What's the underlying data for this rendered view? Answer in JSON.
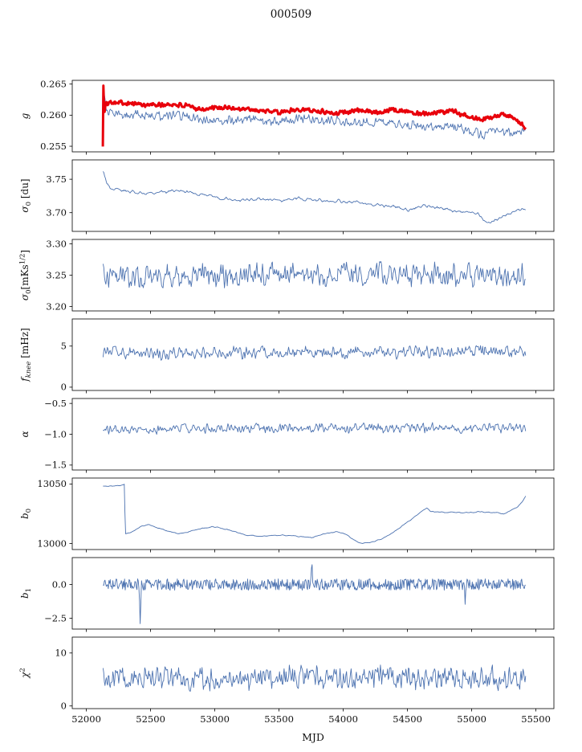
{
  "title": "000509",
  "chart_data": {
    "type": "line",
    "title": "000509",
    "xlabel": "MJD",
    "xlim": [
      51890,
      55640
    ],
    "xticks": [
      {
        "v": 52000,
        "label": "52000"
      },
      {
        "v": 52500,
        "label": "52500"
      },
      {
        "v": 53000,
        "label": "53000"
      },
      {
        "v": 53500,
        "label": "53500"
      },
      {
        "v": 54000,
        "label": "54000"
      },
      {
        "v": 54500,
        "label": "54500"
      },
      {
        "v": 55000,
        "label": "55000"
      },
      {
        "v": 55500,
        "label": "55500"
      }
    ],
    "colors": {
      "blue": "#4c72b0",
      "red": "#e8000b",
      "axis": "#000000"
    },
    "panels": [
      {
        "ylabel": [
          {
            "t": "g",
            "i": true
          }
        ],
        "ylim": [
          0.2541,
          0.2656
        ],
        "yticks": [
          {
            "v": 0.255,
            "label": "0.255"
          },
          {
            "v": 0.26,
            "label": "0.260"
          },
          {
            "v": 0.265,
            "label": "0.265"
          }
        ],
        "series": [
          {
            "name": "gain-blue",
            "color": "#4c72b0",
            "width": 0.9,
            "n": 650,
            "seed": 102,
            "noise": 0.0009,
            "smooth": 2,
            "points": [
              [
                52130,
                0.2612
              ],
              [
                52140,
                0.2626
              ],
              [
                52155,
                0.2604
              ],
              [
                52250,
                0.2601
              ],
              [
                52450,
                0.2599
              ],
              [
                52650,
                0.26
              ],
              [
                52850,
                0.2596
              ],
              [
                53050,
                0.259
              ],
              [
                53250,
                0.2596
              ],
              [
                53450,
                0.2589
              ],
              [
                53650,
                0.2594
              ],
              [
                53850,
                0.2591
              ],
              [
                54050,
                0.2589
              ],
              [
                54250,
                0.259
              ],
              [
                54450,
                0.2586
              ],
              [
                54650,
                0.2581
              ],
              [
                54850,
                0.2583
              ],
              [
                55000,
                0.2574
              ],
              [
                55080,
                0.2568
              ],
              [
                55180,
                0.2578
              ],
              [
                55280,
                0.2574
              ],
              [
                55350,
                0.257
              ],
              [
                55420,
                0.2581
              ]
            ]
          },
          {
            "name": "gain-red",
            "color": "#e8000b",
            "width": 3,
            "n": 700,
            "seed": 101,
            "noise": 0.00045,
            "smooth": 2,
            "points": [
              [
                52128,
                0.255
              ],
              [
                52133,
                0.2652
              ],
              [
                52139,
                0.26
              ],
              [
                52150,
                0.2618
              ],
              [
                52200,
                0.2622
              ],
              [
                52350,
                0.2619
              ],
              [
                52500,
                0.2616
              ],
              [
                52700,
                0.2617
              ],
              [
                52900,
                0.261
              ],
              [
                53100,
                0.2612
              ],
              [
                53300,
                0.2609
              ],
              [
                53500,
                0.2604
              ],
              [
                53650,
                0.261
              ],
              [
                53800,
                0.2607
              ],
              [
                53950,
                0.2603
              ],
              [
                54100,
                0.2608
              ],
              [
                54250,
                0.2605
              ],
              [
                54400,
                0.2609
              ],
              [
                54550,
                0.2604
              ],
              [
                54700,
                0.2603
              ],
              [
                54850,
                0.2607
              ],
              [
                55000,
                0.2596
              ],
              [
                55080,
                0.2591
              ],
              [
                55150,
                0.2597
              ],
              [
                55250,
                0.2601
              ],
              [
                55320,
                0.2597
              ],
              [
                55380,
                0.2586
              ],
              [
                55420,
                0.258
              ]
            ]
          }
        ]
      },
      {
        "ylabel": [
          {
            "t": "σ",
            "i": true
          },
          {
            "t": "0",
            "s": "sub"
          },
          {
            "t": " [du]"
          }
        ],
        "ylim": [
          3.672,
          3.779
        ],
        "yticks": [
          {
            "v": 3.7,
            "label": "3.70"
          },
          {
            "v": 3.75,
            "label": "3.75"
          }
        ],
        "series": [
          {
            "name": "sigma0-du",
            "color": "#4c72b0",
            "width": 0.9,
            "n": 550,
            "seed": 103,
            "noise": 0.0035,
            "smooth": 3,
            "points": [
              [
                52130,
                3.762
              ],
              [
                52160,
                3.745
              ],
              [
                52200,
                3.736
              ],
              [
                52300,
                3.733
              ],
              [
                52450,
                3.729
              ],
              [
                52600,
                3.731
              ],
              [
                52750,
                3.732
              ],
              [
                52900,
                3.727
              ],
              [
                53050,
                3.722
              ],
              [
                53200,
                3.718
              ],
              [
                53350,
                3.721
              ],
              [
                53500,
                3.718
              ],
              [
                53650,
                3.721
              ],
              [
                53800,
                3.719
              ],
              [
                53950,
                3.717
              ],
              [
                54100,
                3.716
              ],
              [
                54250,
                3.712
              ],
              [
                54400,
                3.709
              ],
              [
                54500,
                3.704
              ],
              [
                54650,
                3.71
              ],
              [
                54800,
                3.706
              ],
              [
                54950,
                3.7
              ],
              [
                55050,
                3.7
              ],
              [
                55120,
                3.683
              ],
              [
                55200,
                3.69
              ],
              [
                55300,
                3.7
              ],
              [
                55420,
                3.706
              ]
            ]
          }
        ]
      },
      {
        "ylabel": [
          {
            "t": "σ",
            "i": true
          },
          {
            "t": "0",
            "s": "sub"
          },
          {
            "t": "[mKs"
          },
          {
            "t": "1/2",
            "s": "sup"
          },
          {
            "t": "]"
          }
        ],
        "ylim": [
          3.193,
          3.307
        ],
        "yticks": [
          {
            "v": 3.2,
            "label": "3.20"
          },
          {
            "v": 3.25,
            "label": "3.25"
          },
          {
            "v": 3.3,
            "label": "3.30"
          }
        ],
        "series": [
          {
            "name": "sigma0-mks",
            "color": "#4c72b0",
            "width": 0.9,
            "n": 600,
            "seed": 104,
            "noise": 0.022,
            "smooth": 2,
            "points": [
              [
                52130,
                3.247
              ],
              [
                53000,
                3.25
              ],
              [
                54000,
                3.252
              ],
              [
                55420,
                3.251
              ]
            ]
          }
        ]
      },
      {
        "ylabel": [
          {
            "t": "f",
            "i": true
          },
          {
            "t": "knee",
            "s": "sub",
            "i": true
          },
          {
            "t": " [mHz]"
          }
        ],
        "ylim": [
          -0.4,
          8.3
        ],
        "yticks": [
          {
            "v": 0,
            "label": "0"
          },
          {
            "v": 5,
            "label": "5"
          }
        ],
        "series": [
          {
            "name": "fknee",
            "color": "#4c72b0",
            "width": 0.9,
            "n": 600,
            "seed": 105,
            "noise": 0.9,
            "smooth": 2,
            "points": [
              [
                52130,
                4.15
              ],
              [
                53500,
                4.2
              ],
              [
                54500,
                4.25
              ],
              [
                55420,
                4.3
              ]
            ]
          }
        ]
      },
      {
        "ylabel": [
          {
            "t": "α",
            "i": true
          }
        ],
        "ylim": [
          -1.58,
          -0.42
        ],
        "yticks": [
          {
            "v": -0.5,
            "label": "−0.5"
          },
          {
            "v": -1.0,
            "label": "−1.0"
          },
          {
            "v": -1.5,
            "label": "−1.5"
          }
        ],
        "series": [
          {
            "name": "alpha",
            "color": "#4c72b0",
            "width": 0.9,
            "n": 600,
            "seed": 106,
            "noise": 0.09,
            "smooth": 2,
            "points": [
              [
                52130,
                -0.92
              ],
              [
                53500,
                -0.9
              ],
              [
                55420,
                -0.9
              ]
            ]
          }
        ]
      },
      {
        "ylabel": [
          {
            "t": "b",
            "i": true
          },
          {
            "t": "0",
            "s": "sub"
          }
        ],
        "ylim": [
          12995,
          13055
        ],
        "yticks": [
          {
            "v": 13000,
            "label": "13000"
          },
          {
            "v": 13050,
            "label": "13050"
          }
        ],
        "series": [
          {
            "name": "b0",
            "color": "#4c72b0",
            "width": 0.9,
            "n": 600,
            "seed": 107,
            "noise": 0.7,
            "smooth": 4,
            "points": [
              [
                52130,
                13048
              ],
              [
                52200,
                13048.5
              ],
              [
                52290,
                13049
              ],
              [
                52298,
                13050
              ],
              [
                52302,
                13008
              ],
              [
                52360,
                13010
              ],
              [
                52420,
                13014
              ],
              [
                52480,
                13016
              ],
              [
                52560,
                13013
              ],
              [
                52650,
                13010
              ],
              [
                52720,
                13008
              ],
              [
                52800,
                13010
              ],
              [
                52900,
                13013
              ],
              [
                53000,
                13014
              ],
              [
                53080,
                13012
              ],
              [
                53160,
                13010
              ],
              [
                53250,
                13007
              ],
              [
                53350,
                13006
              ],
              [
                53450,
                13007
              ],
              [
                53550,
                13007
              ],
              [
                53650,
                13006
              ],
              [
                53750,
                13005
              ],
              [
                53850,
                13008
              ],
              [
                53950,
                13010
              ],
              [
                54020,
                13008
              ],
              [
                54080,
                13003
              ],
              [
                54150,
                13000
              ],
              [
                54220,
                13001
              ],
              [
                54300,
                13004
              ],
              [
                54400,
                13010
              ],
              [
                54500,
                13018
              ],
              [
                54600,
                13026
              ],
              [
                54650,
                13030
              ],
              [
                54680,
                13027
              ],
              [
                54800,
                13026
              ],
              [
                54900,
                13026
              ],
              [
                55000,
                13026
              ],
              [
                55050,
                13027
              ],
              [
                55120,
                13026
              ],
              [
                55200,
                13026
              ],
              [
                55250,
                13025
              ],
              [
                55300,
                13028
              ],
              [
                55350,
                13030
              ],
              [
                55400,
                13036
              ],
              [
                55420,
                13040
              ]
            ]
          }
        ]
      },
      {
        "ylabel": [
          {
            "t": "b",
            "i": true
          },
          {
            "t": "1",
            "s": "sub"
          }
        ],
        "ylim": [
          -3.3,
          2.0
        ],
        "yticks": [
          {
            "v": 0.0,
            "label": "0.0"
          },
          {
            "v": -2.5,
            "label": "−2.5"
          }
        ],
        "series": [
          {
            "name": "b1",
            "color": "#4c72b0",
            "width": 0.9,
            "n": 650,
            "seed": 108,
            "noise": 0.42,
            "smooth": 1,
            "points": [
              [
                52130,
                0.05
              ],
              [
                52410,
                0
              ],
              [
                52419,
                -2.8
              ],
              [
                52428,
                0
              ],
              [
                52800,
                0
              ],
              [
                53747,
                0
              ],
              [
                53756,
                1.9
              ],
              [
                53765,
                0
              ],
              [
                54300,
                0
              ],
              [
                54940,
                0
              ],
              [
                54948,
                -1.3
              ],
              [
                54956,
                0
              ],
              [
                55420,
                0.05
              ]
            ]
          }
        ]
      },
      {
        "ylabel": [
          {
            "t": "χ",
            "i": true
          },
          {
            "t": "2",
            "s": "sup"
          }
        ],
        "ylim": [
          -0.5,
          13
        ],
        "yticks": [
          {
            "v": 0,
            "label": "0"
          },
          {
            "v": 10,
            "label": "10"
          }
        ],
        "series": [
          {
            "name": "chi2",
            "color": "#4c72b0",
            "width": 0.9,
            "n": 650,
            "seed": 109,
            "noise": 2.6,
            "smooth": 2,
            "points": [
              [
                52130,
                5.2
              ],
              [
                52600,
                5.4
              ],
              [
                53000,
                5.0
              ],
              [
                53400,
                5.4
              ],
              [
                53800,
                5.1
              ],
              [
                54200,
                5.4
              ],
              [
                54600,
                5.2
              ],
              [
                55000,
                5.3
              ],
              [
                55420,
                5.4
              ]
            ]
          }
        ]
      }
    ]
  }
}
